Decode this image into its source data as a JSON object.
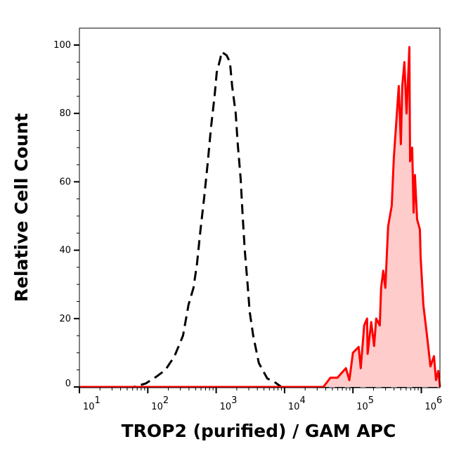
{
  "chart_data": {
    "type": "area",
    "xlabel": "TROP2 (purified) / GAM APC",
    "ylabel": "Relative Cell Count",
    "x_scale": "log",
    "xlim": [
      10,
      1900000
    ],
    "ylim": [
      0,
      105
    ],
    "x_ticks": [
      10,
      100,
      1000,
      10000,
      100000,
      1000000
    ],
    "x_tick_labels": [
      {
        "base": "10",
        "exp": "1"
      },
      {
        "base": "10",
        "exp": "2"
      },
      {
        "base": "10",
        "exp": "3"
      },
      {
        "base": "10",
        "exp": "4"
      },
      {
        "base": "10",
        "exp": "5"
      },
      {
        "base": "10",
        "exp": "6"
      }
    ],
    "y_ticks": [
      0,
      20,
      40,
      60,
      80,
      100
    ],
    "y_tick_labels": [
      "0",
      "20",
      "40",
      "60",
      "80",
      "100"
    ],
    "grid": false,
    "series": [
      {
        "style": "dashed-line",
        "color": "#000000",
        "x": [
          10,
          62,
          93,
          133,
          181,
          246,
          327,
          394,
          466,
          524,
          590,
          664,
          748,
          841,
          947,
          1020,
          1150,
          1200,
          1420,
          1590,
          1710,
          1930,
          2070,
          2280,
          2440,
          2620,
          2880,
          3090,
          3480,
          4210,
          5590,
          7080,
          8980,
          1900000
        ],
        "y": [
          0,
          0,
          1,
          3,
          5,
          9,
          15,
          24,
          29,
          36,
          46,
          55,
          65,
          76,
          85,
          92,
          96,
          98,
          97,
          95,
          88,
          80,
          71,
          61,
          50,
          40,
          30,
          22,
          15,
          7,
          2.5,
          1.5,
          0,
          0
        ]
      },
      {
        "style": "filled-line",
        "color": "#ff0000",
        "fill": "#ffcccc",
        "x": [
          10,
          36900,
          46800,
          59300,
          78900,
          88700,
          100000,
          121000,
          130000,
          146000,
          161000,
          164000,
          185000,
          204000,
          219000,
          247000,
          258000,
          277000,
          298000,
          327000,
          369000,
          396000,
          426000,
          468000,
          502000,
          527000,
          566000,
          608000,
          668000,
          684000,
          735000,
          771000,
          807000,
          867000,
          953000,
          977000,
          1070000,
          1210000,
          1360000,
          1530000,
          1640000,
          1770000,
          1900000
        ],
        "y": [
          0,
          0,
          2.7,
          2.7,
          5.5,
          2,
          10,
          11.7,
          5.5,
          18,
          20,
          9.7,
          19,
          12,
          20,
          18,
          29,
          34,
          29,
          47,
          53,
          67,
          76,
          88,
          71,
          88,
          95,
          80,
          99.4,
          66,
          70,
          51,
          62,
          49,
          46,
          38,
          24,
          15,
          6,
          9,
          2,
          4.7,
          0
        ]
      }
    ]
  }
}
